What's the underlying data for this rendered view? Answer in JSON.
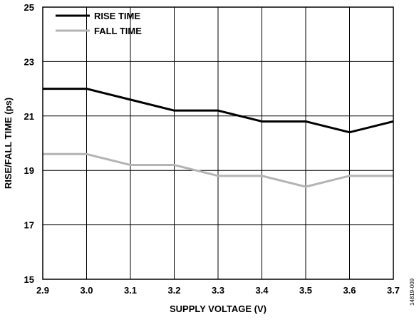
{
  "chart_data": {
    "type": "line",
    "title": "",
    "xlabel": "SUPPLY VOLTAGE (V)",
    "ylabel": "RISE/FALL TIME (ps)",
    "xlim": [
      2.9,
      3.7
    ],
    "ylim": [
      15,
      25
    ],
    "x_ticks": [
      "2.9",
      "3.0",
      "3.1",
      "3.2",
      "3.3",
      "3.4",
      "3.5",
      "3.6",
      "3.7"
    ],
    "y_ticks": [
      "15",
      "17",
      "19",
      "21",
      "23",
      "25"
    ],
    "grid": true,
    "legend_position": "top-left",
    "x": [
      2.9,
      3.0,
      3.1,
      3.2,
      3.3,
      3.4,
      3.5,
      3.6,
      3.7
    ],
    "series": [
      {
        "name": "RISE TIME",
        "color": "#000000",
        "values": [
          22.0,
          22.0,
          21.6,
          21.2,
          21.2,
          20.8,
          20.8,
          20.4,
          20.8
        ]
      },
      {
        "name": "FALL TIME",
        "color": "#b4b4b4",
        "values": [
          19.6,
          19.6,
          19.2,
          19.2,
          18.8,
          18.8,
          18.4,
          18.8,
          18.8
        ]
      }
    ],
    "figure_code": "14819-009"
  }
}
